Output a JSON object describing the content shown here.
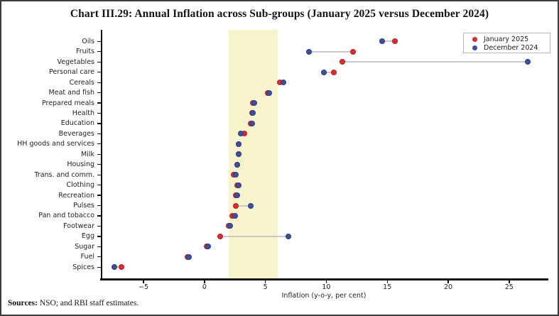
{
  "title": "Chart III.29: Annual Inflation across Sub-groups (January 2025 versus December 2024)",
  "source_note": {
    "label": "Sources:",
    "text": " NSO; and RBI staff estimates."
  },
  "legend": [
    {
      "name": "January 2025",
      "color": "#e02a2c"
    },
    {
      "name": "December 2024",
      "color": "#3d4fa1"
    }
  ],
  "chart_data": {
    "type": "scatter",
    "subtype": "dumbbell-dot-plot",
    "orientation": "horizontal",
    "title": "Chart III.29: Annual Inflation across Sub-groups (January 2025 versus December 2024)",
    "xlabel": "Inflation (y-o-y, per cent)",
    "ylabel": "",
    "xlim": [
      -8.5,
      28.1
    ],
    "xticks": [
      -5,
      0,
      5,
      10,
      15,
      20,
      25
    ],
    "grid": false,
    "legend_position": "upper-right",
    "tolerance_band": {
      "from": 2,
      "to": 6,
      "color": "#f7f4cd"
    },
    "connector_color": "#c9c9c9",
    "categories": [
      "Oils",
      "Fruits",
      "Vegetables",
      "Personal care",
      "Cereals",
      "Meat and fish",
      "Prepared meals",
      "Health",
      "Education",
      "Beverages",
      "HH goods and services",
      "Milk",
      "Housing",
      "Trans. and comm.",
      "Clothing",
      "Recreation",
      "Pulses",
      "Pan and tobacco",
      "Footwear",
      "Egg",
      "Sugar",
      "Fuel",
      "Spices"
    ],
    "series": [
      {
        "name": "January 2025",
        "color": "#e02a2c",
        "edge_color": "#b52022",
        "values": [
          15.6,
          12.2,
          11.3,
          10.6,
          6.2,
          5.2,
          4.0,
          3.9,
          3.8,
          3.3,
          2.8,
          2.8,
          2.7,
          2.4,
          2.7,
          2.6,
          2.6,
          2.3,
          2.0,
          1.3,
          0.2,
          -1.4,
          -6.8
        ]
      },
      {
        "name": "December 2024",
        "color": "#3d4fa1",
        "edge_color": "#2d3b7e",
        "values": [
          14.6,
          8.6,
          26.5,
          9.8,
          6.5,
          5.3,
          4.1,
          4.0,
          3.9,
          3.0,
          2.8,
          2.8,
          2.7,
          2.6,
          2.8,
          2.7,
          3.8,
          2.5,
          2.1,
          6.9,
          0.3,
          -1.3,
          -7.4
        ]
      }
    ]
  }
}
